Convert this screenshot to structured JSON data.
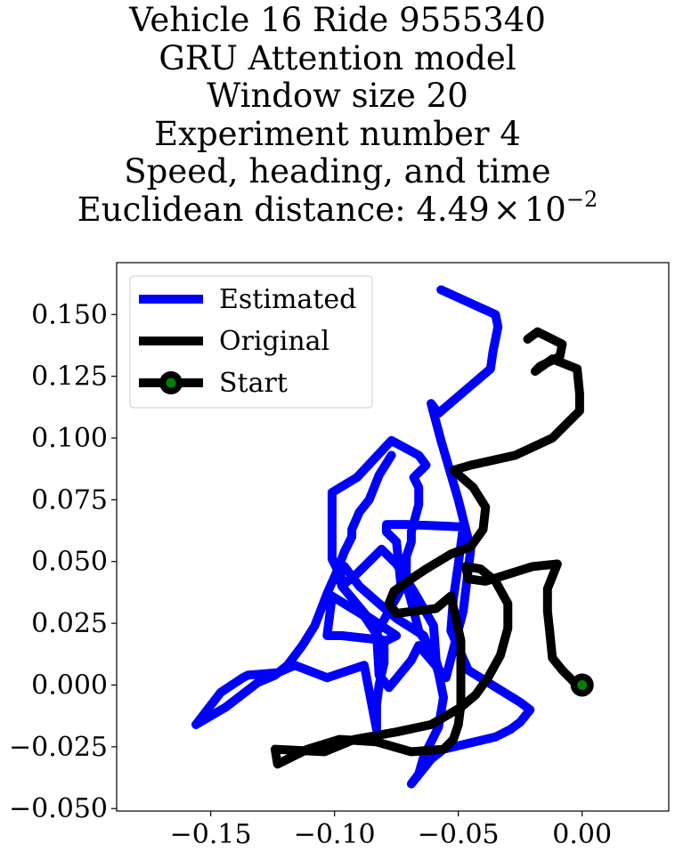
{
  "chart_data": {
    "type": "line",
    "title_lines": [
      "Vehicle 16 Ride 9555340",
      "GRU Attention model",
      "Window size 20",
      "Experiment number 4",
      "Speed, heading, and time"
    ],
    "title_metric": {
      "prefix": "Euclidean distance: ",
      "mantissa": "4.49",
      "times": "×",
      "base": "10",
      "exponent": "−2"
    },
    "xlim": [
      -0.188,
      0.035
    ],
    "ylim": [
      -0.051,
      0.171
    ],
    "xticks": [
      -0.15,
      -0.1,
      -0.05,
      0.0
    ],
    "xtick_labels": [
      "−0.15",
      "−0.10",
      "−0.05",
      "0.00"
    ],
    "yticks": [
      -0.05,
      -0.025,
      0.0,
      0.025,
      0.05,
      0.075,
      0.1,
      0.125,
      0.15
    ],
    "ytick_labels": [
      "−0.050",
      "−0.025",
      "0.000",
      "0.025",
      "0.050",
      "0.075",
      "0.100",
      "0.125",
      "0.150"
    ],
    "grid": false,
    "legend_position": "top-left",
    "series": [
      {
        "name": "Estimated",
        "color": "#0000ff",
        "points": [
          [
            -0.057,
            0.16
          ],
          [
            -0.035,
            0.15
          ],
          [
            -0.034,
            0.145
          ],
          [
            -0.036,
            0.135
          ],
          [
            -0.037,
            0.128
          ],
          [
            -0.058,
            0.11
          ],
          [
            -0.061,
            0.114
          ],
          [
            -0.057,
            0.099
          ],
          [
            -0.05,
            0.075
          ],
          [
            -0.045,
            0.055
          ],
          [
            -0.048,
            0.03
          ],
          [
            -0.055,
            0.003
          ],
          [
            -0.066,
            0.016
          ],
          [
            -0.069,
            0.01
          ],
          [
            -0.078,
            -0.001
          ],
          [
            -0.082,
            0.004
          ],
          [
            -0.083,
            0.021
          ],
          [
            -0.073,
            0.039
          ],
          [
            -0.075,
            0.058
          ],
          [
            -0.079,
            0.062
          ],
          [
            -0.079,
            0.065
          ],
          [
            -0.071,
            0.065
          ],
          [
            -0.048,
            0.064
          ],
          [
            -0.05,
            0.049
          ],
          [
            -0.052,
            0.035
          ],
          [
            -0.053,
            0.022
          ],
          [
            -0.046,
            0.006
          ],
          [
            -0.025,
            -0.007
          ],
          [
            -0.021,
            -0.01
          ],
          [
            -0.025,
            -0.015
          ],
          [
            -0.029,
            -0.018
          ],
          [
            -0.035,
            -0.021
          ],
          [
            -0.056,
            -0.026
          ],
          [
            -0.061,
            -0.03
          ],
          [
            -0.069,
            -0.04
          ],
          [
            -0.066,
            -0.036
          ],
          [
            -0.064,
            -0.029
          ],
          [
            -0.058,
            -0.017
          ],
          [
            -0.056,
            -0.005
          ],
          [
            -0.058,
            0.005
          ],
          [
            -0.061,
            0.014
          ],
          [
            -0.066,
            0.022
          ],
          [
            -0.068,
            0.03
          ],
          [
            -0.071,
            0.041
          ],
          [
            -0.071,
            0.052
          ],
          [
            -0.069,
            0.058
          ],
          [
            -0.069,
            0.062
          ],
          [
            -0.066,
            0.073
          ],
          [
            -0.066,
            0.08
          ],
          [
            -0.068,
            0.084
          ],
          [
            -0.063,
            0.089
          ],
          [
            -0.066,
            0.093
          ],
          [
            -0.077,
            0.099
          ],
          [
            -0.091,
            0.084
          ],
          [
            -0.101,
            0.078
          ],
          [
            -0.101,
            0.07
          ],
          [
            -0.101,
            0.06
          ],
          [
            -0.101,
            0.051
          ],
          [
            -0.096,
            0.041
          ],
          [
            -0.091,
            0.045
          ],
          [
            -0.081,
            0.055
          ],
          [
            -0.075,
            0.049
          ],
          [
            -0.068,
            0.038
          ],
          [
            -0.06,
            0.024
          ],
          [
            -0.059,
            0.01
          ],
          [
            -0.057,
            0.003
          ],
          [
            -0.064,
            0.02
          ],
          [
            -0.075,
            0.027
          ],
          [
            -0.082,
            0.033
          ],
          [
            -0.09,
            0.04
          ],
          [
            -0.096,
            0.048
          ],
          [
            -0.1,
            0.05
          ],
          [
            -0.097,
            0.04
          ],
          [
            -0.087,
            0.028
          ],
          [
            -0.075,
            0.02
          ],
          [
            -0.079,
            0.018
          ],
          [
            -0.097,
            0.02
          ],
          [
            -0.103,
            0.02
          ],
          [
            -0.101,
            0.036
          ],
          [
            -0.088,
            0.028
          ],
          [
            -0.08,
            0.016
          ],
          [
            -0.08,
            0.009
          ],
          [
            -0.082,
            0.0
          ],
          [
            -0.083,
            -0.008
          ],
          [
            -0.083,
            -0.015
          ],
          [
            -0.083,
            -0.018
          ],
          [
            -0.088,
            0.008
          ],
          [
            -0.103,
            0.003
          ],
          [
            -0.116,
            0.008
          ],
          [
            -0.123,
            0.005
          ],
          [
            -0.135,
            0.004
          ],
          [
            -0.137,
            0.003
          ],
          [
            -0.146,
            -0.003
          ],
          [
            -0.156,
            -0.016
          ],
          [
            -0.144,
            -0.009
          ],
          [
            -0.131,
            0.001
          ],
          [
            -0.124,
            0.004
          ],
          [
            -0.119,
            0.008
          ],
          [
            -0.113,
            0.016
          ],
          [
            -0.108,
            0.024
          ],
          [
            -0.103,
            0.037
          ],
          [
            -0.099,
            0.046
          ],
          [
            -0.096,
            0.054
          ],
          [
            -0.093,
            0.06
          ],
          [
            -0.093,
            0.063
          ],
          [
            -0.09,
            0.07
          ],
          [
            -0.086,
            0.075
          ],
          [
            -0.082,
            0.085
          ],
          [
            -0.077,
            0.093
          ]
        ]
      },
      {
        "name": "Original",
        "color": "#000000",
        "points": [
          [
            -0.022,
            0.14
          ],
          [
            -0.018,
            0.143
          ],
          [
            -0.012,
            0.14
          ],
          [
            -0.008,
            0.138
          ],
          [
            -0.009,
            0.133
          ],
          [
            -0.017,
            0.129
          ],
          [
            -0.019,
            0.127
          ],
          [
            -0.012,
            0.132
          ],
          [
            -0.002,
            0.128
          ],
          [
            -0.001,
            0.118
          ],
          [
            -0.001,
            0.111
          ],
          [
            -0.012,
            0.1
          ],
          [
            -0.027,
            0.093
          ],
          [
            -0.045,
            0.089
          ],
          [
            -0.052,
            0.087
          ],
          [
            -0.044,
            0.08
          ],
          [
            -0.039,
            0.072
          ],
          [
            -0.04,
            0.063
          ],
          [
            -0.045,
            0.056
          ],
          [
            -0.053,
            0.053
          ],
          [
            -0.063,
            0.047
          ],
          [
            -0.069,
            0.043
          ],
          [
            -0.076,
            0.038
          ],
          [
            -0.078,
            0.033
          ],
          [
            -0.075,
            0.029
          ],
          [
            -0.067,
            0.03
          ],
          [
            -0.059,
            0.031
          ],
          [
            -0.053,
            0.036
          ],
          [
            -0.051,
            0.027
          ],
          [
            -0.049,
            0.018
          ],
          [
            -0.049,
            0.011
          ],
          [
            -0.049,
            0.001
          ],
          [
            -0.049,
            -0.008
          ],
          [
            -0.05,
            -0.016
          ],
          [
            -0.052,
            -0.022
          ],
          [
            -0.056,
            -0.026
          ],
          [
            -0.069,
            -0.027
          ],
          [
            -0.083,
            -0.023
          ],
          [
            -0.098,
            -0.022
          ],
          [
            -0.111,
            -0.026
          ],
          [
            -0.123,
            -0.032
          ],
          [
            -0.124,
            -0.026
          ],
          [
            -0.104,
            -0.027
          ],
          [
            -0.092,
            -0.022
          ],
          [
            -0.075,
            -0.019
          ],
          [
            -0.061,
            -0.016
          ],
          [
            -0.049,
            -0.009
          ],
          [
            -0.043,
            -0.004
          ],
          [
            -0.038,
            0.003
          ],
          [
            -0.033,
            0.012
          ],
          [
            -0.03,
            0.023
          ],
          [
            -0.03,
            0.033
          ],
          [
            -0.035,
            0.042
          ],
          [
            -0.041,
            0.047
          ],
          [
            -0.047,
            0.048
          ],
          [
            -0.046,
            0.043
          ],
          [
            -0.039,
            0.042
          ],
          [
            -0.02,
            0.048
          ],
          [
            -0.01,
            0.049
          ],
          [
            -0.014,
            0.039
          ],
          [
            -0.014,
            0.03
          ],
          [
            -0.013,
            0.021
          ],
          [
            -0.012,
            0.011
          ],
          [
            -0.008,
            0.006
          ],
          [
            -0.003,
            0.001
          ],
          [
            0.0,
            0.0
          ]
        ]
      }
    ],
    "start_marker": {
      "name": "Start",
      "x": 0.0,
      "y": 0.0,
      "face_color": "#008000",
      "edge_color": "#000000"
    }
  }
}
